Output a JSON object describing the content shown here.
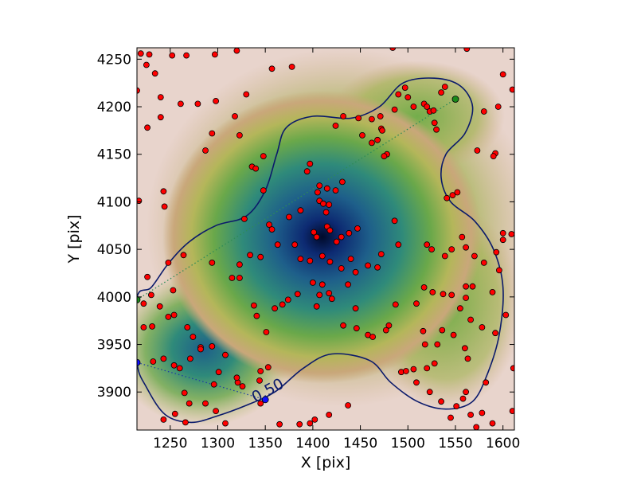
{
  "chart_data": {
    "type": "scatter",
    "title": "",
    "xlabel": "X [pix]",
    "ylabel": "Y [pix]",
    "xlim": [
      1215,
      1612
    ],
    "ylim": [
      3860,
      4262
    ],
    "xticks": [
      1250,
      1300,
      1350,
      1400,
      1450,
      1500,
      1550,
      1600
    ],
    "yticks": [
      3900,
      3950,
      4000,
      4050,
      4100,
      4150,
      4200,
      4250
    ],
    "grid": false,
    "legend": "none",
    "background": "density map (dark blue at peak, green, tan, pink at low)",
    "density_peaks": [
      {
        "x": 1410,
        "y": 4063,
        "weight": 1.0,
        "spread": 70
      },
      {
        "x": 1285,
        "y": 3945,
        "weight": 0.7,
        "spread": 45
      }
    ],
    "contour": {
      "label": "0.50",
      "color": "#0b1a6b",
      "path": [
        [
          1215,
          3999
        ],
        [
          1230,
          4010
        ],
        [
          1248,
          4035
        ],
        [
          1270,
          4058
        ],
        [
          1298,
          4075
        ],
        [
          1330,
          4085
        ],
        [
          1350,
          4112
        ],
        [
          1362,
          4150
        ],
        [
          1372,
          4178
        ],
        [
          1400,
          4190
        ],
        [
          1440,
          4188
        ],
        [
          1470,
          4200
        ],
        [
          1495,
          4225
        ],
        [
          1528,
          4230
        ],
        [
          1555,
          4222
        ],
        [
          1568,
          4200
        ],
        [
          1560,
          4172
        ],
        [
          1540,
          4150
        ],
        [
          1535,
          4125
        ],
        [
          1545,
          4100
        ],
        [
          1570,
          4080
        ],
        [
          1590,
          4050
        ],
        [
          1600,
          4010
        ],
        [
          1596,
          3960
        ],
        [
          1584,
          3920
        ],
        [
          1568,
          3890
        ],
        [
          1540,
          3882
        ],
        [
          1510,
          3890
        ],
        [
          1482,
          3910
        ],
        [
          1460,
          3933
        ],
        [
          1420,
          3940
        ],
        [
          1390,
          3925
        ],
        [
          1360,
          3900
        ],
        [
          1330,
          3886
        ],
        [
          1300,
          3875
        ],
        [
          1272,
          3868
        ],
        [
          1245,
          3876
        ],
        [
          1225,
          3905
        ],
        [
          1215,
          3932
        ]
      ]
    },
    "contour_label_point": {
      "x": 1355,
      "y": 3897
    },
    "guide_lines": [
      {
        "color": "#2e8b57",
        "from": [
          1215,
          3997
        ],
        "to": [
          1550,
          4208
        ]
      },
      {
        "color": "#1f3fa0",
        "from": [
          1215,
          3931
        ],
        "to": [
          1350,
          3892
        ]
      }
    ],
    "endpoints": [
      {
        "x": 1550,
        "y": 4208,
        "color": "#1a8a1a"
      },
      {
        "x": 1215,
        "y": 3997,
        "color": "#1a8a1a"
      },
      {
        "x": 1215,
        "y": 3931,
        "color": "#1010ff"
      },
      {
        "x": 1350,
        "y": 3892,
        "color": "#1010ff"
      }
    ],
    "point_color": "#ff0000",
    "points": [
      [
        1219,
        4256
      ],
      [
        1225,
        4244
      ],
      [
        1234,
        4235
      ],
      [
        1228,
        4255
      ],
      [
        1252,
        4254
      ],
      [
        1267,
        4254
      ],
      [
        1297,
        4255
      ],
      [
        1320,
        4259
      ],
      [
        1357,
        4240
      ],
      [
        1378,
        4242
      ],
      [
        1484,
        4262
      ],
      [
        1562,
        4261
      ],
      [
        1215,
        4217
      ],
      [
        1240,
        4210
      ],
      [
        1261,
        4203
      ],
      [
        1279,
        4203
      ],
      [
        1298,
        4206
      ],
      [
        1330,
        4213
      ],
      [
        1240,
        4189
      ],
      [
        1226,
        4178
      ],
      [
        1318,
        4190
      ],
      [
        1294,
        4172
      ],
      [
        1323,
        4170
      ],
      [
        1287,
        4154
      ],
      [
        1336,
        4137
      ],
      [
        1217,
        4101
      ],
      [
        1243,
        4111
      ],
      [
        1244,
        4095
      ],
      [
        1264,
        4044
      ],
      [
        1248,
        4036
      ],
      [
        1294,
        4036
      ],
      [
        1323,
        4034
      ],
      [
        1328,
        4082
      ],
      [
        1354,
        4076
      ],
      [
        1323,
        4020
      ],
      [
        1315,
        4020
      ],
      [
        1226,
        4021
      ],
      [
        1222,
        3993
      ],
      [
        1230,
        4002
      ],
      [
        1239,
        3990
      ],
      [
        1248,
        3979
      ],
      [
        1253,
        4007
      ],
      [
        1254,
        3981
      ],
      [
        1268,
        3968
      ],
      [
        1274,
        3958
      ],
      [
        1282,
        3947
      ],
      [
        1294,
        3948
      ],
      [
        1308,
        3939
      ],
      [
        1222,
        3968
      ],
      [
        1231,
        3969
      ],
      [
        1243,
        3935
      ],
      [
        1232,
        3932
      ],
      [
        1254,
        3928
      ],
      [
        1260,
        3925
      ],
      [
        1265,
        3899
      ],
      [
        1270,
        3888
      ],
      [
        1287,
        3888
      ],
      [
        1296,
        3908
      ],
      [
        1298,
        3880
      ],
      [
        1266,
        3868
      ],
      [
        1243,
        3871
      ],
      [
        1255,
        3877
      ],
      [
        1301,
        3921
      ],
      [
        1321,
        3910
      ],
      [
        1326,
        3906
      ],
      [
        1320,
        3915
      ],
      [
        1308,
        3867
      ],
      [
        1345,
        3888
      ],
      [
        1344,
        3912
      ],
      [
        1345,
        3922
      ],
      [
        1353,
        3926
      ],
      [
        1365,
        3866
      ],
      [
        1386,
        3866
      ],
      [
        1397,
        3867
      ],
      [
        1402,
        3871
      ],
      [
        1417,
        3876
      ],
      [
        1437,
        3886
      ],
      [
        1348,
        4148
      ],
      [
        1340,
        4135
      ],
      [
        1348,
        4112
      ],
      [
        1357,
        4071
      ],
      [
        1363,
        4055
      ],
      [
        1381,
        4055
      ],
      [
        1375,
        4084
      ],
      [
        1387,
        4091
      ],
      [
        1394,
        4132
      ],
      [
        1397,
        4140
      ],
      [
        1407,
        4117
      ],
      [
        1405,
        4110
      ],
      [
        1407,
        4101
      ],
      [
        1411,
        4098
      ],
      [
        1415,
        4114
      ],
      [
        1424,
        4112
      ],
      [
        1431,
        4121
      ],
      [
        1417,
        4097
      ],
      [
        1414,
        4089
      ],
      [
        1401,
        4068
      ],
      [
        1404,
        4063
      ],
      [
        1415,
        4074
      ],
      [
        1418,
        4070
      ],
      [
        1425,
        4058
      ],
      [
        1430,
        4063
      ],
      [
        1438,
        4067
      ],
      [
        1447,
        4072
      ],
      [
        1410,
        4043
      ],
      [
        1418,
        4037
      ],
      [
        1430,
        4030
      ],
      [
        1440,
        4040
      ],
      [
        1445,
        4026
      ],
      [
        1458,
        4033
      ],
      [
        1468,
        4031
      ],
      [
        1472,
        4045
      ],
      [
        1490,
        4055
      ],
      [
        1486,
        4080
      ],
      [
        1387,
        4040
      ],
      [
        1397,
        4038
      ],
      [
        1400,
        4015
      ],
      [
        1410,
        4013
      ],
      [
        1417,
        4004
      ],
      [
        1407,
        4002
      ],
      [
        1384,
        4003
      ],
      [
        1374,
        3997
      ],
      [
        1368,
        3992
      ],
      [
        1360,
        3988
      ],
      [
        1404,
        3990
      ],
      [
        1420,
        3998
      ],
      [
        1432,
        3970
      ],
      [
        1446,
        3967
      ],
      [
        1458,
        3960
      ],
      [
        1463,
        3958
      ],
      [
        1477,
        3965
      ],
      [
        1480,
        3970
      ],
      [
        1487,
        3992
      ],
      [
        1509,
        3993
      ],
      [
        1516,
        3964
      ],
      [
        1518,
        3950
      ],
      [
        1424,
        4180
      ],
      [
        1432,
        4190
      ],
      [
        1448,
        4188
      ],
      [
        1462,
        4187
      ],
      [
        1471,
        4190
      ],
      [
        1472,
        4177
      ],
      [
        1486,
        4197
      ],
      [
        1490,
        4213
      ],
      [
        1497,
        4220
      ],
      [
        1500,
        4210
      ],
      [
        1506,
        4200
      ],
      [
        1517,
        4203
      ],
      [
        1520,
        4200
      ],
      [
        1523,
        4195
      ],
      [
        1527,
        4196
      ],
      [
        1535,
        4215
      ],
      [
        1539,
        4221
      ],
      [
        1528,
        4183
      ],
      [
        1530,
        4176
      ],
      [
        1452,
        4170
      ],
      [
        1462,
        4162
      ],
      [
        1468,
        4165
      ],
      [
        1473,
        4175
      ],
      [
        1478,
        4150
      ],
      [
        1475,
        4148
      ],
      [
        1547,
        4107
      ],
      [
        1552,
        4110
      ],
      [
        1541,
        4104
      ],
      [
        1520,
        4055
      ],
      [
        1525,
        4050
      ],
      [
        1539,
        4043
      ],
      [
        1546,
        4050
      ],
      [
        1557,
        4063
      ],
      [
        1561,
        4052
      ],
      [
        1570,
        4043
      ],
      [
        1561,
        4011
      ],
      [
        1568,
        4011
      ],
      [
        1589,
        4005
      ],
      [
        1596,
        4028
      ],
      [
        1517,
        4010
      ],
      [
        1526,
        4005
      ],
      [
        1537,
        4003
      ],
      [
        1546,
        4002
      ],
      [
        1555,
        3988
      ],
      [
        1561,
        3999
      ],
      [
        1566,
        3976
      ],
      [
        1578,
        3968
      ],
      [
        1592,
        3962
      ],
      [
        1603,
        3981
      ],
      [
        1520,
        3925
      ],
      [
        1528,
        3930
      ],
      [
        1531,
        3950
      ],
      [
        1536,
        3965
      ],
      [
        1548,
        3960
      ],
      [
        1560,
        3946
      ],
      [
        1563,
        3935
      ],
      [
        1582,
        3910
      ],
      [
        1561,
        3900
      ],
      [
        1558,
        3893
      ],
      [
        1578,
        3878
      ],
      [
        1572,
        3863
      ],
      [
        1566,
        3876
      ],
      [
        1589,
        3867
      ],
      [
        1610,
        3880
      ],
      [
        1611,
        3925
      ],
      [
        1493,
        3921
      ],
      [
        1498,
        3922
      ],
      [
        1506,
        3924
      ],
      [
        1509,
        3910
      ],
      [
        1523,
        3900
      ],
      [
        1535,
        3890
      ],
      [
        1551,
        3885
      ],
      [
        1545,
        3873
      ],
      [
        1573,
        4154
      ],
      [
        1580,
        4195
      ],
      [
        1592,
        4151
      ],
      [
        1590,
        4148
      ],
      [
        1595,
        4200
      ],
      [
        1600,
        4234
      ],
      [
        1610,
        4218
      ],
      [
        1600,
        4067
      ],
      [
        1609,
        4066
      ],
      [
        1600,
        4060
      ],
      [
        1593,
        4047
      ],
      [
        1580,
        4036
      ],
      [
        1437,
        4013
      ],
      [
        1445,
        3988
      ],
      [
        1345,
        4042
      ],
      [
        1334,
        4044
      ],
      [
        1338,
        3991
      ],
      [
        1341,
        3980
      ],
      [
        1351,
        3963
      ],
      [
        1282,
        3945
      ],
      [
        1271,
        3935
      ]
    ]
  }
}
